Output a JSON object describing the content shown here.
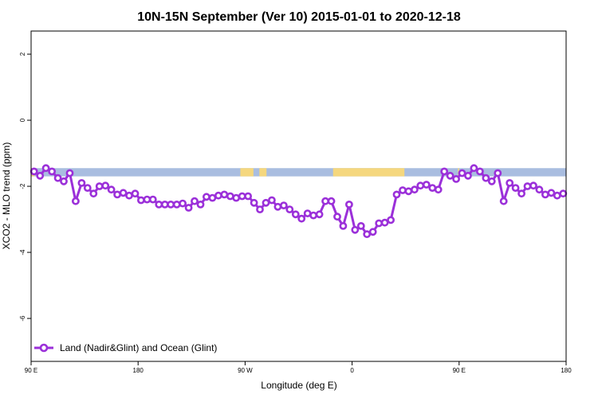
{
  "chart_data": {
    "type": "line",
    "title": "10N-15N September (Ver 10)   2015-01-01 to 2020-12-18",
    "xlabel": "Longitude (deg E)",
    "ylabel": "XCO2 - MLO trend (ppm)",
    "xlim": [
      90,
      540
    ],
    "ylim": [
      -7.3,
      2.7
    ],
    "x_ticks": [
      {
        "value": 90,
        "label": "90 E"
      },
      {
        "value": 180,
        "label": "180"
      },
      {
        "value": 270,
        "label": "90 W"
      },
      {
        "value": 360,
        "label": "0"
      },
      {
        "value": 450,
        "label": "90 E"
      },
      {
        "value": 540,
        "label": "180"
      }
    ],
    "y_ticks": [
      {
        "value": 2,
        "label": "2"
      },
      {
        "value": 0,
        "label": "0"
      },
      {
        "value": -2,
        "label": "-2"
      },
      {
        "value": -4,
        "label": "-4"
      },
      {
        "value": -6,
        "label": "-6"
      }
    ],
    "grid": false,
    "legend_position": "bottom-left",
    "land_band": {
      "y_range": [
        -1.7,
        -1.45
      ],
      "ocean_color": "#a9bde0",
      "land_color": "#f5d77e",
      "land_segments": [
        [
          90,
          93
        ],
        [
          266,
          277
        ],
        [
          282,
          288
        ],
        [
          344,
          404
        ],
        [
          449,
          450
        ]
      ]
    },
    "series": [
      {
        "name": "Land (Nadir&Glint) and Ocean (Glint)",
        "color": "#9b30d9",
        "x": [
          92.5,
          97.5,
          102.5,
          107.5,
          112.5,
          117.5,
          122.5,
          127.5,
          132.5,
          137.5,
          142.5,
          147.5,
          152.5,
          157.5,
          162.5,
          167.5,
          172.5,
          177.5,
          182.5,
          187.5,
          192.5,
          197.5,
          202.5,
          207.5,
          212.5,
          217.5,
          222.5,
          227.5,
          232.5,
          237.5,
          242.5,
          247.5,
          252.5,
          257.5,
          262.5,
          267.5,
          272.5,
          277.5,
          282.5,
          287.5,
          292.5,
          297.5,
          302.5,
          307.5,
          312.5,
          317.5,
          322.5,
          327.5,
          332.5,
          337.5,
          342.5,
          347.5,
          352.5,
          357.5,
          362.5,
          367.5,
          372.5,
          377.5,
          382.5,
          387.5,
          392.5,
          397.5,
          402.5,
          407.5,
          412.5,
          417.5,
          422.5,
          427.5,
          432.5,
          437.5,
          442.5,
          447.5,
          452.5,
          457.5,
          462.5,
          467.5,
          472.5,
          477.5,
          482.5,
          487.5,
          492.5,
          497.5,
          502.5,
          507.5,
          512.5,
          517.5,
          522.5,
          527.5,
          532.5,
          537.5
        ],
        "y": [
          -1.55,
          -1.68,
          -1.45,
          -1.55,
          -1.75,
          -1.85,
          -1.6,
          -2.45,
          -1.9,
          -2.05,
          -2.22,
          -2.0,
          -1.98,
          -2.1,
          -2.25,
          -2.2,
          -2.28,
          -2.22,
          -2.42,
          -2.4,
          -2.4,
          -2.55,
          -2.55,
          -2.55,
          -2.55,
          -2.52,
          -2.65,
          -2.45,
          -2.55,
          -2.32,
          -2.35,
          -2.28,
          -2.25,
          -2.3,
          -2.35,
          -2.3,
          -2.3,
          -2.5,
          -2.7,
          -2.5,
          -2.42,
          -2.62,
          -2.58,
          -2.7,
          -2.85,
          -2.98,
          -2.82,
          -2.88,
          -2.85,
          -2.45,
          -2.45,
          -2.92,
          -3.2,
          -2.55,
          -3.32,
          -3.2,
          -3.45,
          -3.38,
          -3.12,
          -3.1,
          -3.02,
          -2.25,
          -2.12,
          -2.15,
          -2.1,
          -1.98,
          -1.95,
          -2.05,
          -2.1,
          -1.55,
          -1.68,
          -1.78,
          -1.6,
          -1.68,
          -1.45,
          -1.55,
          -1.75,
          -1.85,
          -1.6,
          -2.45,
          -1.9,
          -2.05,
          -2.22,
          -2.0,
          -1.98,
          -2.1,
          -2.25,
          -2.2,
          -2.28,
          -2.22
        ]
      }
    ]
  }
}
